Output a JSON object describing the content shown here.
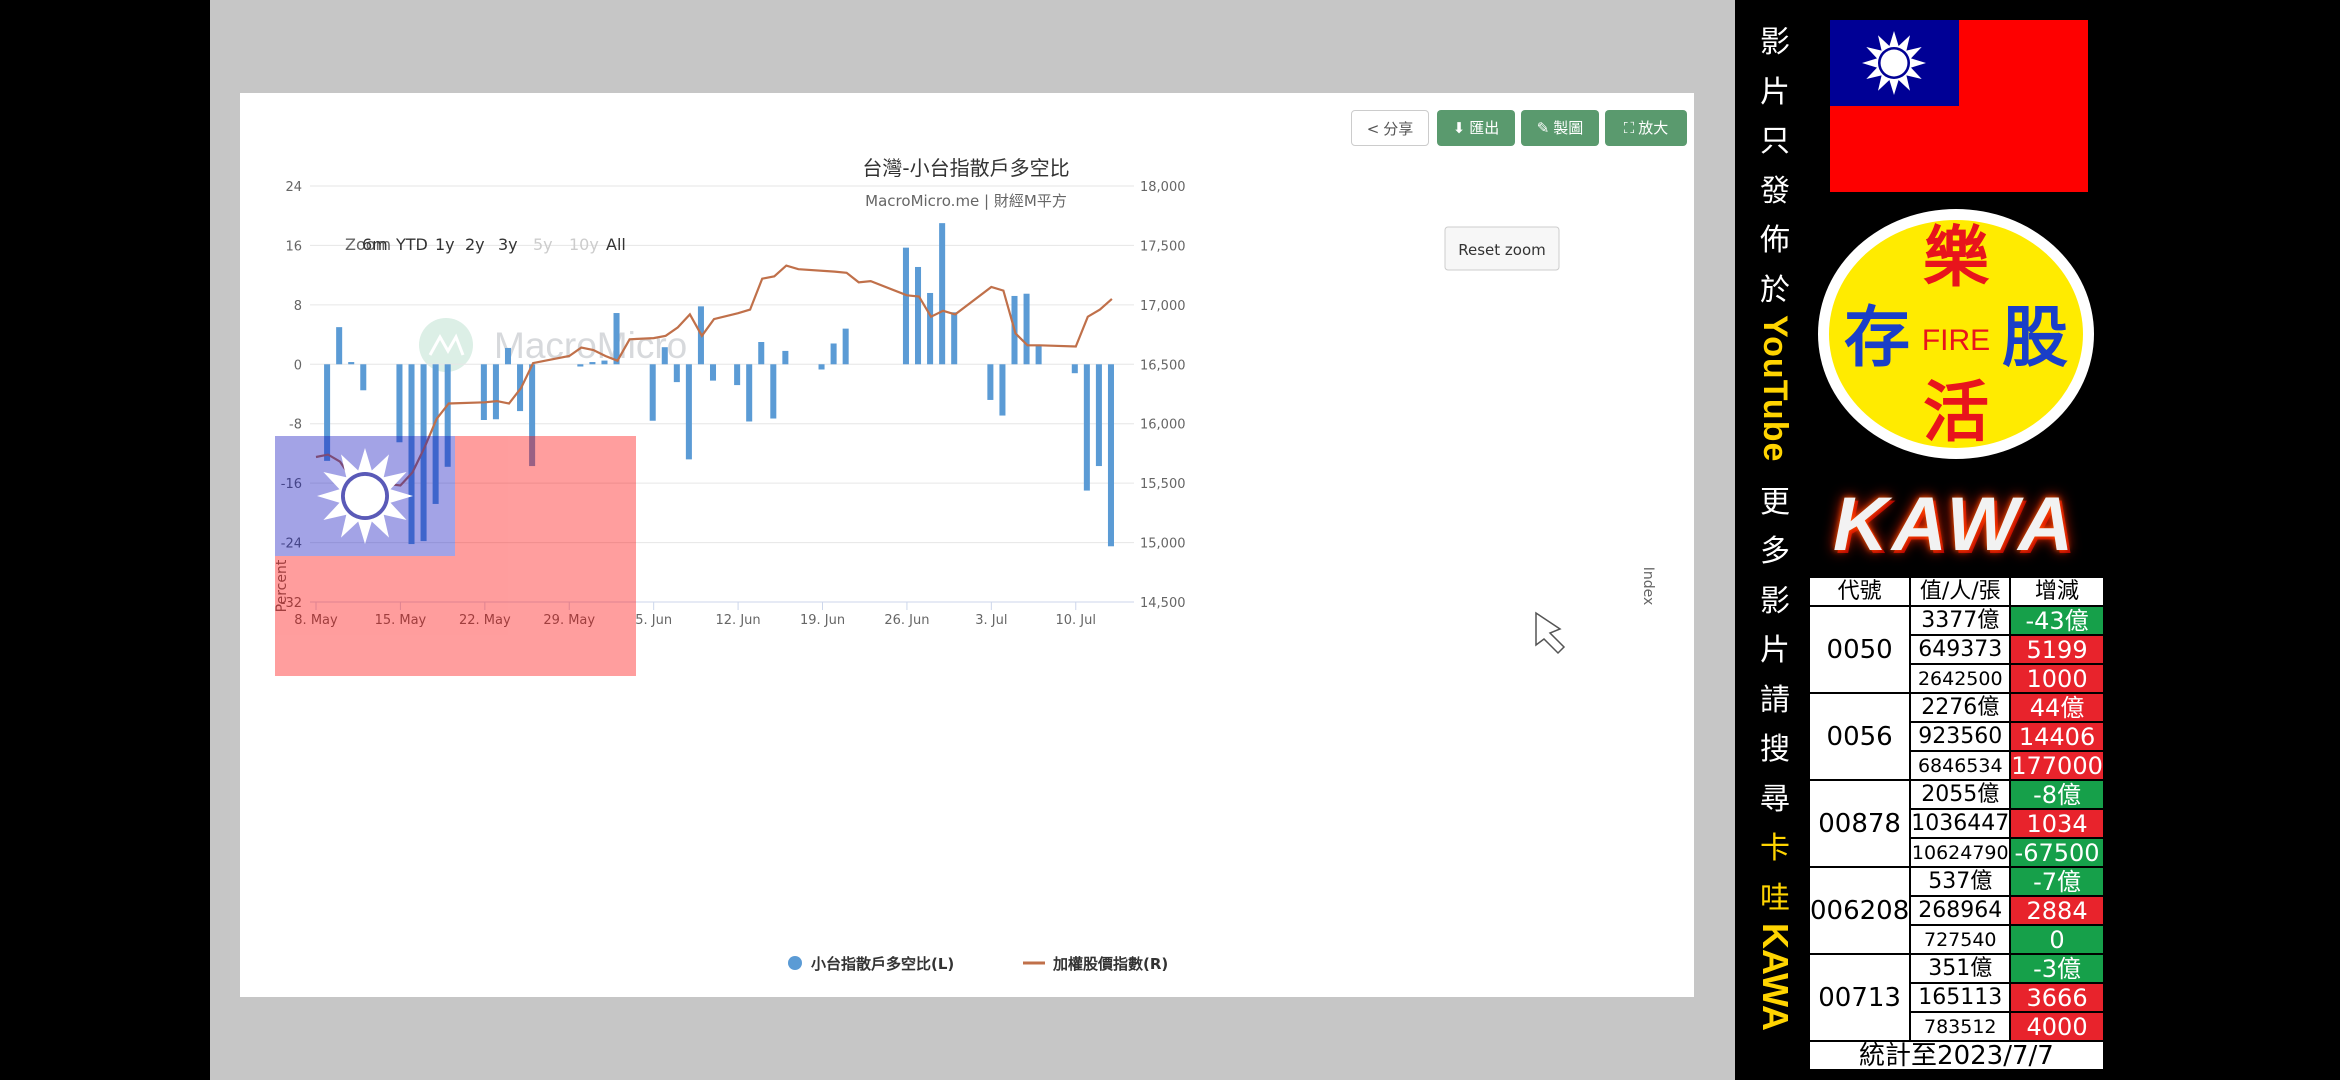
{
  "toolbar": {
    "share": "分享",
    "export": "匯出",
    "draw": "製圖",
    "expand": "放大"
  },
  "range_selector": {
    "label": "Zoom",
    "options": [
      "6m",
      "YTD",
      "1y",
      "2y",
      "3y",
      "5y",
      "10y",
      "All"
    ],
    "disabled": [
      "5y",
      "10y"
    ],
    "reset": "Reset zoom"
  },
  "watermark": "MacroMicro",
  "chart_data": {
    "type": "bar+line",
    "title": "台灣-小台指散戶多空比",
    "subtitle": "MacroMicro.me | 財經M平方",
    "ylabel_left": "Percent",
    "ylabel_right": "Index",
    "ylim_left": [
      -32,
      24
    ],
    "yticks_left": [
      24,
      16,
      8,
      0,
      -8,
      -16,
      -24,
      -32
    ],
    "ylim_right": [
      14500,
      18000
    ],
    "yticks_right": [
      "18,000",
      "17,500",
      "17,000",
      "16,500",
      "16,000",
      "15,500",
      "15,000",
      "14,500"
    ],
    "xlim": [
      "2023-05-08",
      "2023-07-14"
    ],
    "xticks": [
      {
        "date": "2023-05-08",
        "label": "8. May"
      },
      {
        "date": "2023-05-15",
        "label": "15. May"
      },
      {
        "date": "2023-05-22",
        "label": "22. May"
      },
      {
        "date": "2023-05-29",
        "label": "29. May"
      },
      {
        "date": "2023-06-05",
        "label": "5. Jun"
      },
      {
        "date": "2023-06-12",
        "label": "12. Jun"
      },
      {
        "date": "2023-06-19",
        "label": "19. Jun"
      },
      {
        "date": "2023-06-26",
        "label": "26. Jun"
      },
      {
        "date": "2023-07-03",
        "label": "3. Jul"
      },
      {
        "date": "2023-07-10",
        "label": "10. Jul"
      }
    ],
    "series": [
      {
        "name": "小台指散戶多空比(L)",
        "type": "bar",
        "axis": "left",
        "color": "#5b9bd5",
        "points": [
          [
            "2023-05-09",
            -13
          ],
          [
            "2023-05-10",
            5
          ],
          [
            "2023-05-11",
            0.3
          ],
          [
            "2023-05-12",
            -3.5
          ],
          [
            "2023-05-15",
            -10.5
          ],
          [
            "2023-05-16",
            -24.2
          ],
          [
            "2023-05-17",
            -23.8
          ],
          [
            "2023-05-18",
            -18.8
          ],
          [
            "2023-05-19",
            -13.8
          ],
          [
            "2023-05-22",
            -7.5
          ],
          [
            "2023-05-23",
            -7.4
          ],
          [
            "2023-05-24",
            2.2
          ],
          [
            "2023-05-25",
            -6.3
          ],
          [
            "2023-05-26",
            -13.7
          ],
          [
            "2023-05-30",
            -0.3
          ],
          [
            "2023-05-31",
            0.3
          ],
          [
            "2023-06-01",
            0.5
          ],
          [
            "2023-06-02",
            6.9
          ],
          [
            "2023-06-05",
            -7.6
          ],
          [
            "2023-06-06",
            2.3
          ],
          [
            "2023-06-07",
            -2.4
          ],
          [
            "2023-06-08",
            -12.8
          ],
          [
            "2023-06-09",
            7.8
          ],
          [
            "2023-06-10",
            -2.2
          ],
          [
            "2023-06-12",
            -2.8
          ],
          [
            "2023-06-13",
            -7.7
          ],
          [
            "2023-06-14",
            3
          ],
          [
            "2023-06-15",
            -7.3
          ],
          [
            "2023-06-16",
            1.8
          ],
          [
            "2023-06-19",
            -0.7
          ],
          [
            "2023-06-20",
            2.8
          ],
          [
            "2023-06-21",
            4.8
          ],
          [
            "2023-06-26",
            15.7
          ],
          [
            "2023-06-27",
            13.1
          ],
          [
            "2023-06-28",
            9.6
          ],
          [
            "2023-06-29",
            19
          ],
          [
            "2023-06-30",
            7
          ],
          [
            "2023-07-03",
            -4.8
          ],
          [
            "2023-07-04",
            -6.9
          ],
          [
            "2023-07-05",
            9.2
          ],
          [
            "2023-07-06",
            9.5
          ],
          [
            "2023-07-07",
            2.5
          ],
          [
            "2023-07-10",
            -1.2
          ],
          [
            "2023-07-11",
            -17
          ],
          [
            "2023-07-12",
            -13.7
          ],
          [
            "2023-07-13",
            -24.5
          ]
        ]
      },
      {
        "name": "加權股價指數(R)",
        "type": "line",
        "axis": "right",
        "color": "#c0704a",
        "points": [
          [
            "2023-05-08",
            15720
          ],
          [
            "2023-05-09",
            15740
          ],
          [
            "2023-05-10",
            15680
          ],
          [
            "2023-05-11",
            15530
          ],
          [
            "2023-05-15",
            15480
          ],
          [
            "2023-05-16",
            15590
          ],
          [
            "2023-05-17",
            15800
          ],
          [
            "2023-05-18",
            16040
          ],
          [
            "2023-05-19",
            16170
          ],
          [
            "2023-05-22",
            16180
          ],
          [
            "2023-05-23",
            16190
          ],
          [
            "2023-05-24",
            16170
          ],
          [
            "2023-05-25",
            16300
          ],
          [
            "2023-05-26",
            16510
          ],
          [
            "2023-05-29",
            16570
          ],
          [
            "2023-05-30",
            16640
          ],
          [
            "2023-05-31",
            16620
          ],
          [
            "2023-06-01",
            16570
          ],
          [
            "2023-06-02",
            16530
          ],
          [
            "2023-06-03",
            16710
          ],
          [
            "2023-06-05",
            16720
          ],
          [
            "2023-06-06",
            16740
          ],
          [
            "2023-06-07",
            16810
          ],
          [
            "2023-06-08",
            16920
          ],
          [
            "2023-06-09",
            16740
          ],
          [
            "2023-06-10",
            16880
          ],
          [
            "2023-06-12",
            16930
          ],
          [
            "2023-06-13",
            16960
          ],
          [
            "2023-06-14",
            17220
          ],
          [
            "2023-06-15",
            17240
          ],
          [
            "2023-06-16",
            17330
          ],
          [
            "2023-06-17",
            17300
          ],
          [
            "2023-06-20",
            17280
          ],
          [
            "2023-06-21",
            17270
          ],
          [
            "2023-06-22",
            17190
          ],
          [
            "2023-06-23",
            17200
          ],
          [
            "2023-06-26",
            17080
          ],
          [
            "2023-06-27",
            17070
          ],
          [
            "2023-06-28",
            16900
          ],
          [
            "2023-06-29",
            16950
          ],
          [
            "2023-06-30",
            16920
          ],
          [
            "2023-07-03",
            17150
          ],
          [
            "2023-07-04",
            17120
          ],
          [
            "2023-07-05",
            16760
          ],
          [
            "2023-07-06",
            16660
          ],
          [
            "2023-07-07",
            16660
          ],
          [
            "2023-07-10",
            16650
          ],
          [
            "2023-07-11",
            16900
          ],
          [
            "2023-07-12",
            16960
          ],
          [
            "2023-07-13",
            17050
          ]
        ]
      }
    ],
    "legend_position": "bottom-center",
    "grid": true
  },
  "sidebar": {
    "vertical_text": {
      "line1": [
        "影",
        "片",
        "只",
        "發",
        "佈",
        "於"
      ],
      "youtube": "YouTube",
      "line2": [
        "更",
        "多",
        "影",
        "片",
        "請",
        "搜",
        "尋"
      ],
      "highlight": [
        "卡",
        "哇"
      ],
      "kawa": "KAWA"
    },
    "logo": {
      "top": "樂",
      "left": "存",
      "center": "FIRE",
      "right": "股",
      "bottom": "活"
    },
    "kawa_title": "KAWA",
    "table": {
      "headers": [
        "代號",
        "值/人/張",
        "增減"
      ],
      "rows": [
        {
          "code": "0050",
          "lines": [
            [
              "3377億",
              "-43億"
            ],
            [
              "649373",
              "5199"
            ],
            [
              "2642500",
              "1000"
            ]
          ]
        },
        {
          "code": "0056",
          "lines": [
            [
              "2276億",
              "44億"
            ],
            [
              "923560",
              "14406"
            ],
            [
              "6846534",
              "177000"
            ]
          ]
        },
        {
          "code": "00878",
          "lines": [
            [
              "2055億",
              "-8億"
            ],
            [
              "1036447",
              "1034"
            ],
            [
              "10624790",
              "-67500"
            ]
          ]
        },
        {
          "code": "006208",
          "lines": [
            [
              "537億",
              "-7億"
            ],
            [
              "268964",
              "2884"
            ],
            [
              "727540",
              "0"
            ]
          ]
        },
        {
          "code": "00713",
          "lines": [
            [
              "351億",
              "-3億"
            ],
            [
              "165113",
              "3666"
            ],
            [
              "783512",
              "4000"
            ]
          ]
        }
      ],
      "footer": "統計至2023/7/7"
    }
  },
  "colors": {
    "bar": "#5b9bd5",
    "line": "#c0704a",
    "button_green": "#5a9a6e",
    "flag_red": "#fe0000",
    "flag_blue": "#000095",
    "positive": "#e8232c",
    "negative": "#16a04a"
  }
}
